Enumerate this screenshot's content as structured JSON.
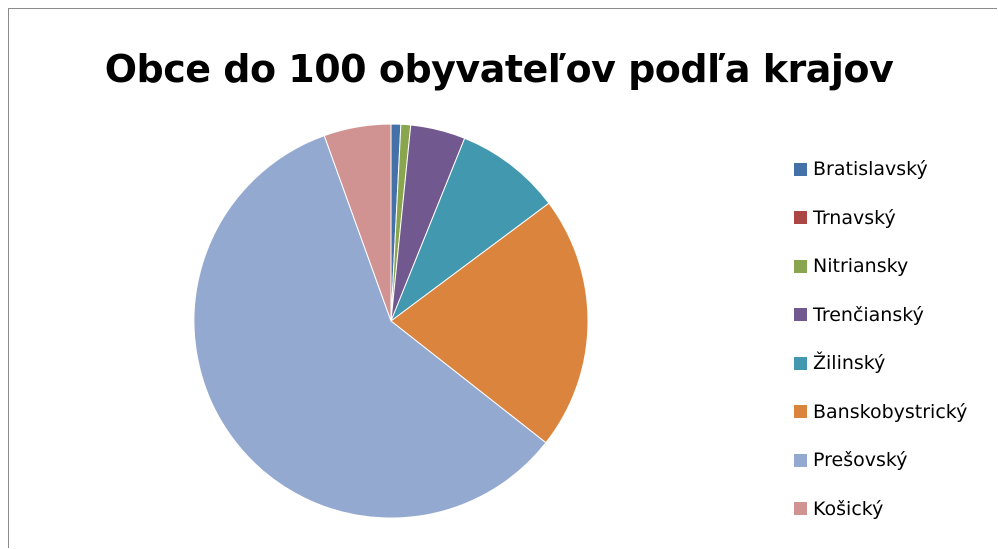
{
  "chart_data": {
    "type": "pie",
    "title": "Obce do 100 obyvateľov podľa krajov",
    "legend_position": "right",
    "series": [
      {
        "categories": [
          "Bratislavský",
          "Trnavský",
          "Nitriansky",
          "Trenčianský",
          "Žilinský",
          "Banskobystrický",
          "Prešovský",
          "Košický"
        ],
        "values": [
          0.8,
          0.0,
          0.8,
          4.5,
          8.7,
          20.8,
          58.9,
          5.5
        ],
        "colors": [
          "#4472A8",
          "#AA4643",
          "#89A54E",
          "#71588F",
          "#4198AF",
          "#DB843D",
          "#93A9CF",
          "#D19392"
        ]
      }
    ]
  }
}
